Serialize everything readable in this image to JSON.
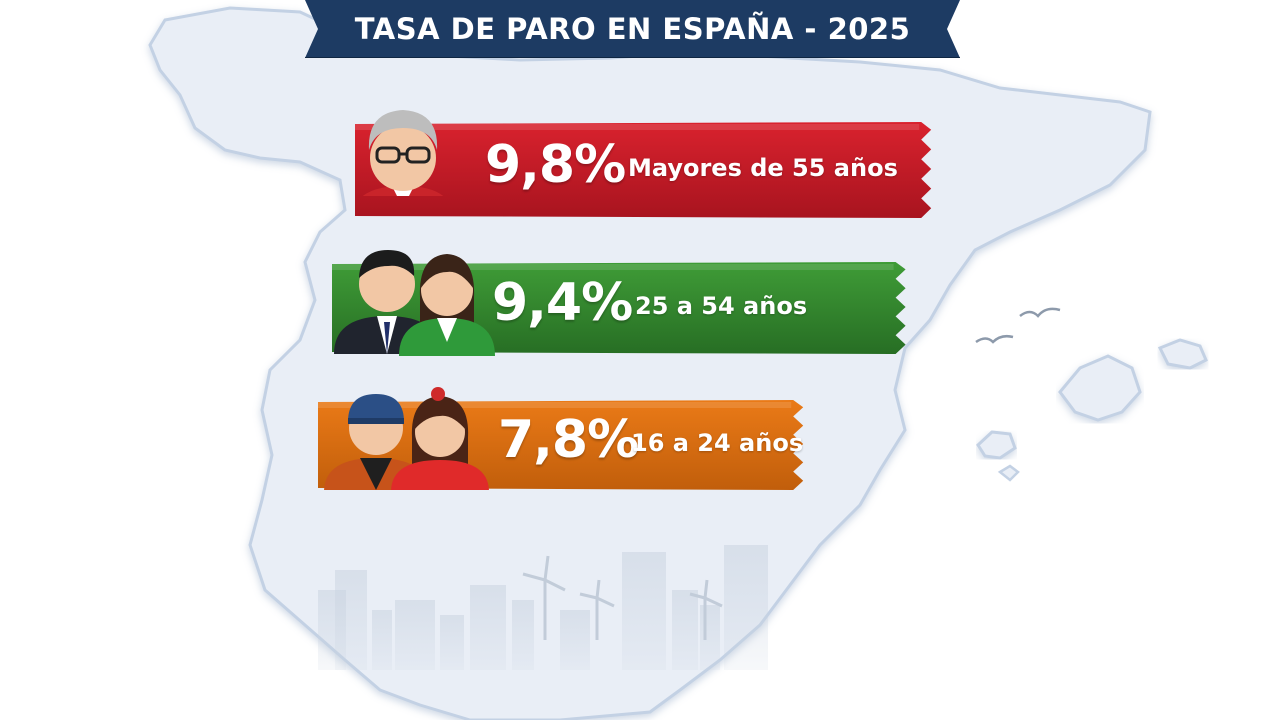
{
  "title": "TASA DE PARO EN ESPAÑA - 2025",
  "colors": {
    "banner": "#1d3b63",
    "map_fill": "#e9eef6",
    "map_edge": "#b8c8de",
    "older": "#d9222e",
    "middle": "#3f9c37",
    "young": "#ea7a17"
  },
  "chart_data": {
    "type": "bar",
    "title": "TASA DE PARO EN ESPAÑA - 2025",
    "categories": [
      "Mayores de 55 años",
      "25 a 54 años",
      "16 a 24 años"
    ],
    "values": [
      9.8,
      9.4,
      7.8
    ],
    "value_labels": [
      "9,8%",
      "9,4%",
      "7,8%"
    ],
    "unit": "%",
    "icons": [
      "older-person-icon",
      "adult-couple-icon",
      "young-couple-icon"
    ]
  }
}
